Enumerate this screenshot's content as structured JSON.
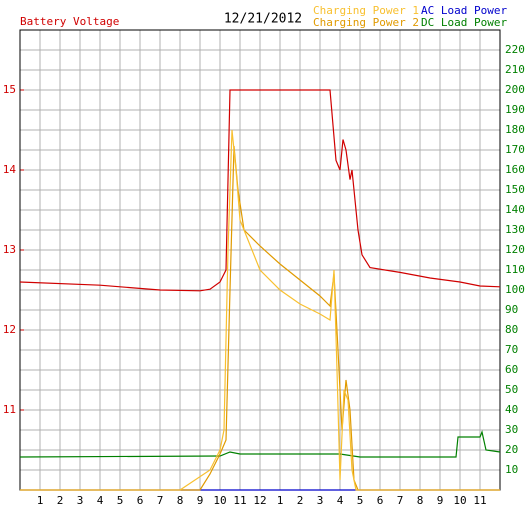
{
  "chart_data": {
    "type": "line",
    "date": "12/21/2012",
    "xlim": [
      0,
      24
    ],
    "xticks": [
      1,
      2,
      3,
      4,
      5,
      6,
      7,
      8,
      9,
      10,
      11,
      12,
      {
        "value": 13,
        "label": "1"
      },
      {
        "value": 14,
        "label": "2"
      },
      {
        "value": 15,
        "label": "3"
      },
      {
        "value": 16,
        "label": "4"
      },
      {
        "value": 17,
        "label": "5"
      },
      {
        "value": 18,
        "label": "6"
      },
      {
        "value": 19,
        "label": "7"
      },
      {
        "value": 20,
        "label": "8"
      },
      {
        "value": 21,
        "label": "9"
      },
      {
        "value": 22,
        "label": "10"
      },
      {
        "value": 23,
        "label": "11"
      }
    ],
    "ylim": [
      10,
      15.75
    ],
    "yticks": [
      11,
      12,
      13,
      14,
      15
    ],
    "y2lim": [
      0,
      230
    ],
    "y2ticks": [
      10,
      20,
      30,
      40,
      50,
      60,
      70,
      80,
      90,
      100,
      110,
      120,
      130,
      140,
      150,
      160,
      170,
      180,
      190,
      200,
      210,
      220
    ],
    "grid": true,
    "legend": "top-right",
    "series": [
      {
        "name": "Battery Voltage",
        "color": "#d00000",
        "x": [
          0,
          4,
          7,
          9,
          9.5,
          10,
          10.3,
          10.5,
          15.5,
          15.8,
          16,
          16.15,
          16.3,
          16.5,
          16.6,
          16.9,
          17.1,
          17.5,
          19,
          20.5,
          22,
          23,
          24
        ],
        "values": [
          12.6,
          12.56,
          12.5,
          12.49,
          12.51,
          12.6,
          12.75,
          15.0,
          15.0,
          14.12,
          14.0,
          14.38,
          14.25,
          13.88,
          14.0,
          13.25,
          12.94,
          12.78,
          12.72,
          12.65,
          12.6,
          12.55,
          12.54
        ]
      },
      {
        "name": "Charging Power 1",
        "color": "#f8c030",
        "axis": "y2",
        "x": [
          0,
          8,
          9.5,
          10,
          10.2,
          10.4,
          10.6,
          10.8,
          11,
          12,
          13,
          14,
          15,
          15.5,
          15.7,
          15.85,
          16,
          16.2,
          16.4,
          16.6,
          16.8,
          24
        ],
        "values": [
          0,
          0,
          10,
          20,
          30,
          120,
          180,
          160,
          135,
          110,
          100,
          93,
          88,
          85,
          110,
          60,
          5,
          50,
          45,
          10,
          0,
          0
        ]
      },
      {
        "name": "Charging Power 2",
        "color": "#e09a00",
        "axis": "y2",
        "x": [
          0,
          9,
          9.5,
          10,
          10.3,
          10.5,
          10.7,
          10.9,
          11.2,
          12,
          13,
          14,
          15,
          15.5,
          15.7,
          15.9,
          16.1,
          16.3,
          16.5,
          16.7,
          16.9,
          24
        ],
        "values": [
          0,
          0,
          8,
          18,
          25,
          100,
          172,
          150,
          130,
          122,
          113,
          105,
          97,
          92,
          108,
          70,
          30,
          55,
          40,
          5,
          0,
          0
        ]
      },
      {
        "name": "AC Load Power",
        "color": "#0000cc",
        "axis": "y2",
        "x": [
          0,
          24
        ],
        "values": [
          0,
          0
        ]
      },
      {
        "name": "DC Load Power",
        "color": "#008000",
        "axis": "y2",
        "x": [
          0,
          10,
          10.5,
          11,
          16,
          17,
          21.8,
          21.9,
          23,
          23.1,
          23.3,
          24
        ],
        "values": [
          16.5,
          17,
          19,
          18,
          18,
          16.5,
          16.5,
          26.5,
          26.5,
          29,
          20,
          19
        ]
      }
    ]
  }
}
